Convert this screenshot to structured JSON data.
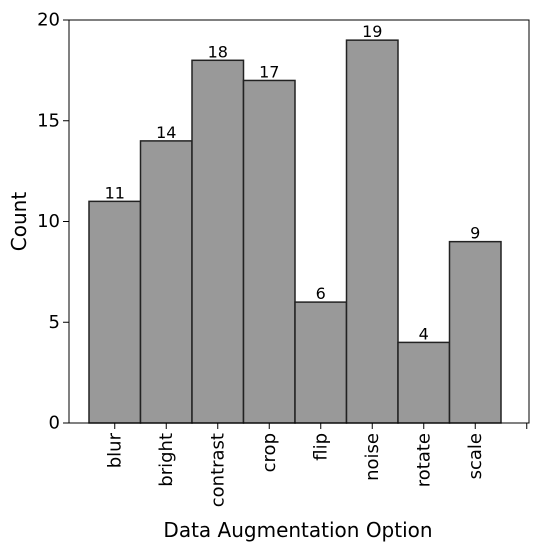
{
  "chart_data": {
    "type": "bar",
    "title": "",
    "xlabel": "Data Augmentation Option",
    "ylabel": "Count",
    "categories": [
      "blur",
      "bright",
      "contrast",
      "crop",
      "flip",
      "noise",
      "rotate",
      "scale"
    ],
    "values": [
      11,
      14,
      18,
      17,
      6,
      19,
      4,
      9
    ],
    "ylim": [
      0,
      20
    ],
    "yticks": [
      "0",
      "5",
      "10",
      "15",
      "20"
    ],
    "bar_color": "#999999",
    "edge_color": "#222222",
    "grid": false
  }
}
